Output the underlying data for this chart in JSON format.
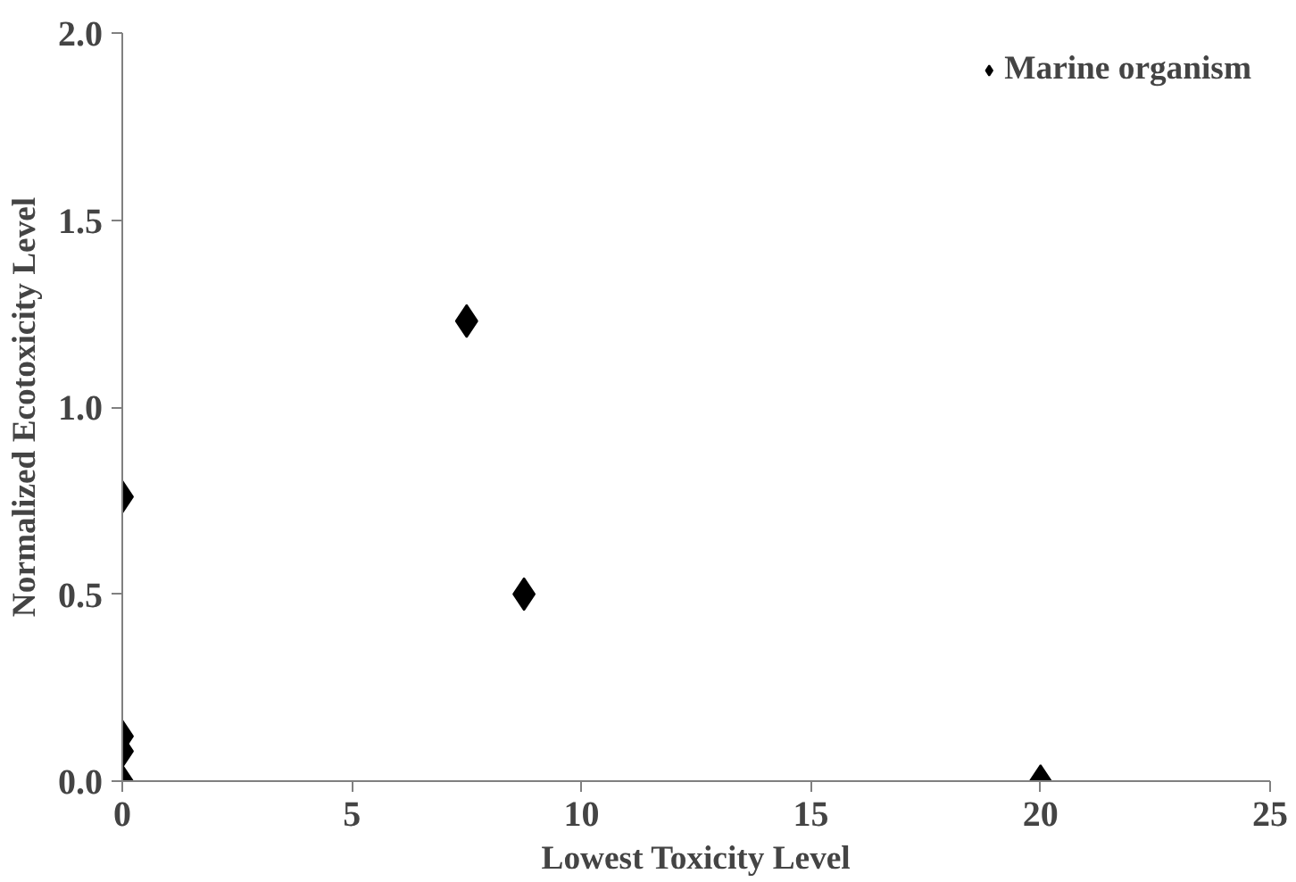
{
  "chart_data": {
    "type": "scatter",
    "xlabel": "Lowest Toxicity Level",
    "ylabel": "Normalized Ecotoxicity Level",
    "x": [
      0,
      0,
      0,
      0,
      7.5,
      8.75,
      20
    ],
    "series": [
      {
        "name": "Marine organism",
        "color": "#000000",
        "values": [
          0.76,
          0.12,
          0.08,
          0.0,
          1.23,
          0.5,
          0.0
        ]
      }
    ],
    "xlim": [
      0,
      25
    ],
    "xticks": [
      0,
      5,
      10,
      15,
      20,
      25
    ],
    "ylim": [
      0,
      2
    ],
    "yticks": [
      {
        "value": 0,
        "label": "0.0"
      },
      {
        "value": 0.5,
        "label": "0.5"
      },
      {
        "value": 1,
        "label": "1.0"
      },
      {
        "value": 1.5,
        "label": "1.5"
      },
      {
        "value": 2,
        "label": "2.0"
      }
    ],
    "grid": false,
    "legend": "top right",
    "marker": "diamond"
  }
}
